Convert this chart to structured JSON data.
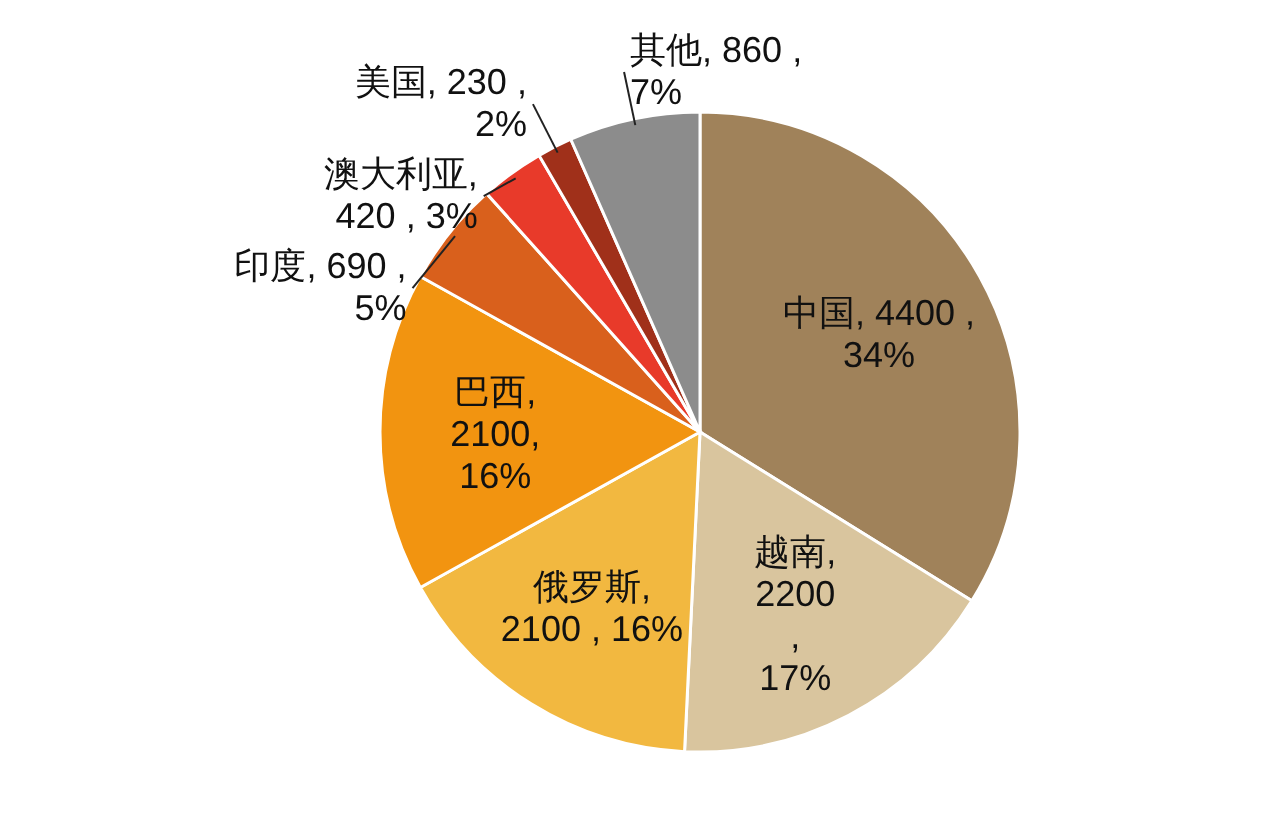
{
  "chart_data": {
    "type": "pie",
    "categories": [
      "中国",
      "越南",
      "俄罗斯",
      "巴西",
      "印度",
      "澳大利亚",
      "美国",
      "其他"
    ],
    "values": [
      4400,
      2200,
      2100,
      2100,
      690,
      420,
      230,
      860
    ],
    "value_labels": [
      ", 4400 ,\n34%",
      ",\n2200\n,\n17%",
      ",\n2100 , 16%",
      ",\n2100,\n16%",
      ", 690 ,\n5%",
      ",\n420 , 3%",
      ", 230 ,\n2%",
      ", 860 ,\n7%"
    ],
    "colors": [
      "#a0825a",
      "#d9c59e",
      "#f2b840",
      "#f29410",
      "#d9601c",
      "#e83a2a",
      "#a0301a",
      "#8c8c8c"
    ]
  }
}
